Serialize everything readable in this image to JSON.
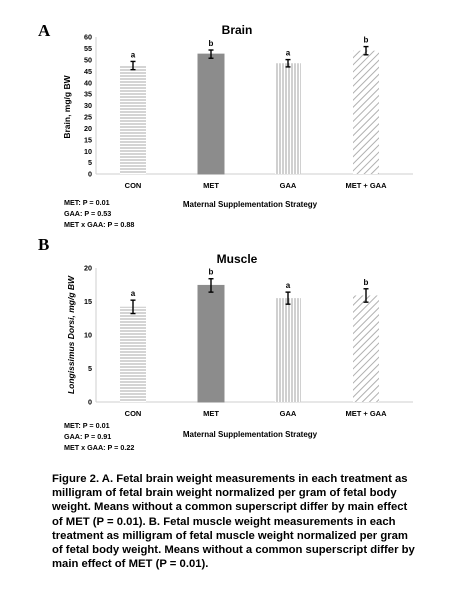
{
  "chart_data": [
    {
      "type": "bar",
      "panel": "A",
      "title": "Brain",
      "xlabel": "Maternal Supplementation Strategy",
      "ylabel": "Brain, mg/g BW",
      "ylim": [
        0,
        60
      ],
      "yticks": [
        0,
        5,
        10,
        15,
        20,
        25,
        30,
        35,
        40,
        45,
        50,
        55,
        60
      ],
      "grid": false,
      "categories": [
        "CON",
        "MET",
        "GAA",
        "MET + GAA"
      ],
      "values": [
        47.5,
        52.5,
        48.5,
        54.0
      ],
      "errors": [
        1.8,
        1.8,
        1.6,
        1.8
      ],
      "superscripts": [
        "a",
        "b",
        "a",
        "b"
      ],
      "stats": [
        "MET: P = 0.01",
        "GAA: P = 0.53",
        "MET x GAA: P = 0.88"
      ]
    },
    {
      "type": "bar",
      "panel": "B",
      "title": "Muscle",
      "xlabel": "Maternal Supplementation Strategy",
      "ylabel": "Longissimus Dorsi, mg/g BW",
      "ylim": [
        0,
        20
      ],
      "yticks": [
        0,
        5,
        10,
        15,
        20
      ],
      "grid": false,
      "categories": [
        "CON",
        "MET",
        "GAA",
        "MET + GAA"
      ],
      "values": [
        14.2,
        17.4,
        15.5,
        15.9
      ],
      "errors": [
        1.0,
        1.0,
        0.9,
        1.0
      ],
      "superscripts": [
        "a",
        "b",
        "a",
        "b"
      ],
      "stats": [
        "MET: P = 0.01",
        "GAA: P = 0.91",
        "MET x GAA: P = 0.22"
      ]
    }
  ],
  "caption_lines": [
    "Figure 2. A. Fetal brain weight measurements in each treatment as",
    "milligram of fetal brain weight normalized per gram of fetal body",
    "weight. Means without a common superscript differ by main effect",
    "of MET (P = 0.01). B. Fetal muscle weight measurements in each",
    "treatment as milligram of fetal muscle weight normalized per gram",
    "of fetal body weight. Means without a common superscript differ by",
    "main effect of MET (P = 0.01)."
  ],
  "colors": {
    "con_lines": "#a8a8a8",
    "met_fill": "#8c8c8c",
    "gaa_lines": "#a0a0a0",
    "metgaa_hatch": "#b0b0b0",
    "axis": "#cfcfcf",
    "text": "#000000"
  }
}
